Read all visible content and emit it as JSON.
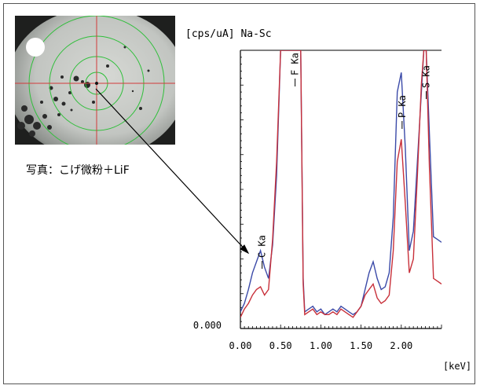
{
  "photo": {
    "caption": "写真：こげ微粉＋LiF"
  },
  "chart_data": {
    "type": "line",
    "ylabel_unit": "[cps/uA]",
    "element_range": "Na-Sc",
    "xlabel": "[keV]",
    "xlim": [
      0.0,
      2.5
    ],
    "ylim": [
      0.0,
      100.0
    ],
    "x_ticks": [
      0.0,
      0.5,
      1.0,
      1.5,
      2.0
    ],
    "x_tick_labels": [
      "0.00",
      "0.50",
      "1.00",
      "1.50",
      "2.00"
    ],
    "y_tick_labels": [
      "0.000"
    ],
    "peak_labels": [
      {
        "text": "C Ka",
        "x": 0.27
      },
      {
        "text": "F Ka",
        "x": 0.68
      },
      {
        "text": "P Ka",
        "x": 2.01
      },
      {
        "text": "S Ka",
        "x": 2.31
      }
    ],
    "series": [
      {
        "color": "#3b4aa8",
        "x": [
          0.0,
          0.05,
          0.1,
          0.15,
          0.2,
          0.25,
          0.3,
          0.35,
          0.4,
          0.45,
          0.5,
          0.55,
          0.6,
          0.65,
          0.7,
          0.72,
          0.75,
          0.78,
          0.8,
          0.85,
          0.9,
          0.95,
          1.0,
          1.05,
          1.1,
          1.15,
          1.2,
          1.25,
          1.3,
          1.35,
          1.4,
          1.45,
          1.5,
          1.55,
          1.6,
          1.65,
          1.7,
          1.75,
          1.8,
          1.85,
          1.9,
          1.95,
          2.0,
          2.05,
          2.1,
          2.15,
          2.2,
          2.25,
          2.28,
          2.31,
          2.35,
          2.4,
          2.45,
          2.5
        ],
        "y": [
          6.0,
          9.0,
          14.0,
          20.0,
          24.0,
          28.0,
          22.0,
          18.0,
          30.0,
          55.0,
          100.0,
          100.0,
          100.0,
          100.0,
          100.0,
          100.0,
          100.0,
          18.0,
          6.0,
          7.0,
          8.0,
          6.0,
          7.0,
          5.0,
          6.0,
          7.0,
          6.0,
          8.0,
          7.0,
          6.0,
          5.0,
          6.0,
          8.0,
          14.0,
          20.0,
          24.0,
          18.0,
          14.0,
          15.0,
          20.0,
          40.0,
          85.0,
          92.0,
          65.0,
          28.0,
          35.0,
          60.0,
          85.0,
          100.0,
          100.0,
          70.0,
          33.0,
          32.0,
          31.0
        ]
      },
      {
        "color": "#c8303a",
        "x": [
          0.0,
          0.05,
          0.1,
          0.15,
          0.2,
          0.25,
          0.3,
          0.35,
          0.4,
          0.45,
          0.5,
          0.55,
          0.6,
          0.65,
          0.7,
          0.72,
          0.75,
          0.78,
          0.8,
          0.85,
          0.9,
          0.95,
          1.0,
          1.05,
          1.1,
          1.15,
          1.2,
          1.25,
          1.3,
          1.35,
          1.4,
          1.45,
          1.5,
          1.55,
          1.6,
          1.65,
          1.7,
          1.75,
          1.8,
          1.85,
          1.9,
          1.95,
          2.0,
          2.05,
          2.1,
          2.15,
          2.2,
          2.25,
          2.28,
          2.31,
          2.35,
          2.4,
          2.45,
          2.5
        ],
        "y": [
          4.0,
          7.0,
          9.0,
          12.0,
          14.0,
          15.0,
          12.0,
          14.0,
          32.0,
          60.0,
          100.0,
          100.0,
          100.0,
          100.0,
          100.0,
          100.0,
          100.0,
          16.0,
          5.0,
          6.0,
          7.0,
          5.0,
          6.0,
          5.0,
          5.0,
          6.0,
          5.0,
          7.0,
          6.0,
          5.0,
          4.0,
          6.0,
          8.0,
          12.0,
          14.0,
          16.0,
          11.0,
          9.0,
          10.0,
          12.0,
          28.0,
          60.0,
          68.0,
          45.0,
          20.0,
          25.0,
          55.0,
          88.0,
          100.0,
          100.0,
          58.0,
          18.0,
          17.0,
          16.0
        ]
      }
    ]
  }
}
